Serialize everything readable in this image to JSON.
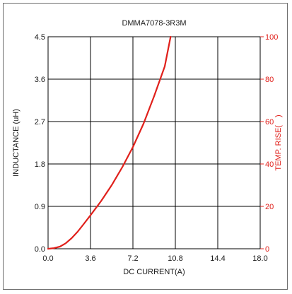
{
  "chart_data": {
    "type": "line",
    "title": "DMMA7078-3R3M",
    "xlabel": "DC CURRENT(A)",
    "ylabel": "INDUCTANCE (uH)",
    "y2label": "TEMP. RISE(　)",
    "xlim": [
      0,
      18
    ],
    "ylim": [
      0,
      4.5
    ],
    "y2lim": [
      0,
      100
    ],
    "x_ticks": [
      "0.0",
      "3.6",
      "7.2",
      "10.8",
      "14.4",
      "18.0"
    ],
    "y_ticks": [
      "0.0",
      "0.9",
      "1.8",
      "2.7",
      "3.6",
      "4.5"
    ],
    "y2_ticks": [
      "0",
      "20",
      "40",
      "60",
      "80",
      "100"
    ],
    "grid": true,
    "series": [
      {
        "axis": "right",
        "color": "#e0201b",
        "x": [
          0.0,
          0.5,
          1.0,
          1.5,
          2.0,
          2.5,
          3.0,
          3.6,
          4.5,
          5.4,
          6.3,
          7.2,
          8.1,
          9.0,
          9.9,
          10.4
        ],
        "y": [
          0.0,
          0.3,
          1.0,
          2.6,
          5.0,
          8.0,
          11.5,
          15.8,
          22.5,
          30.0,
          38.5,
          48.0,
          59.0,
          72.0,
          86.0,
          100.0
        ]
      }
    ]
  }
}
